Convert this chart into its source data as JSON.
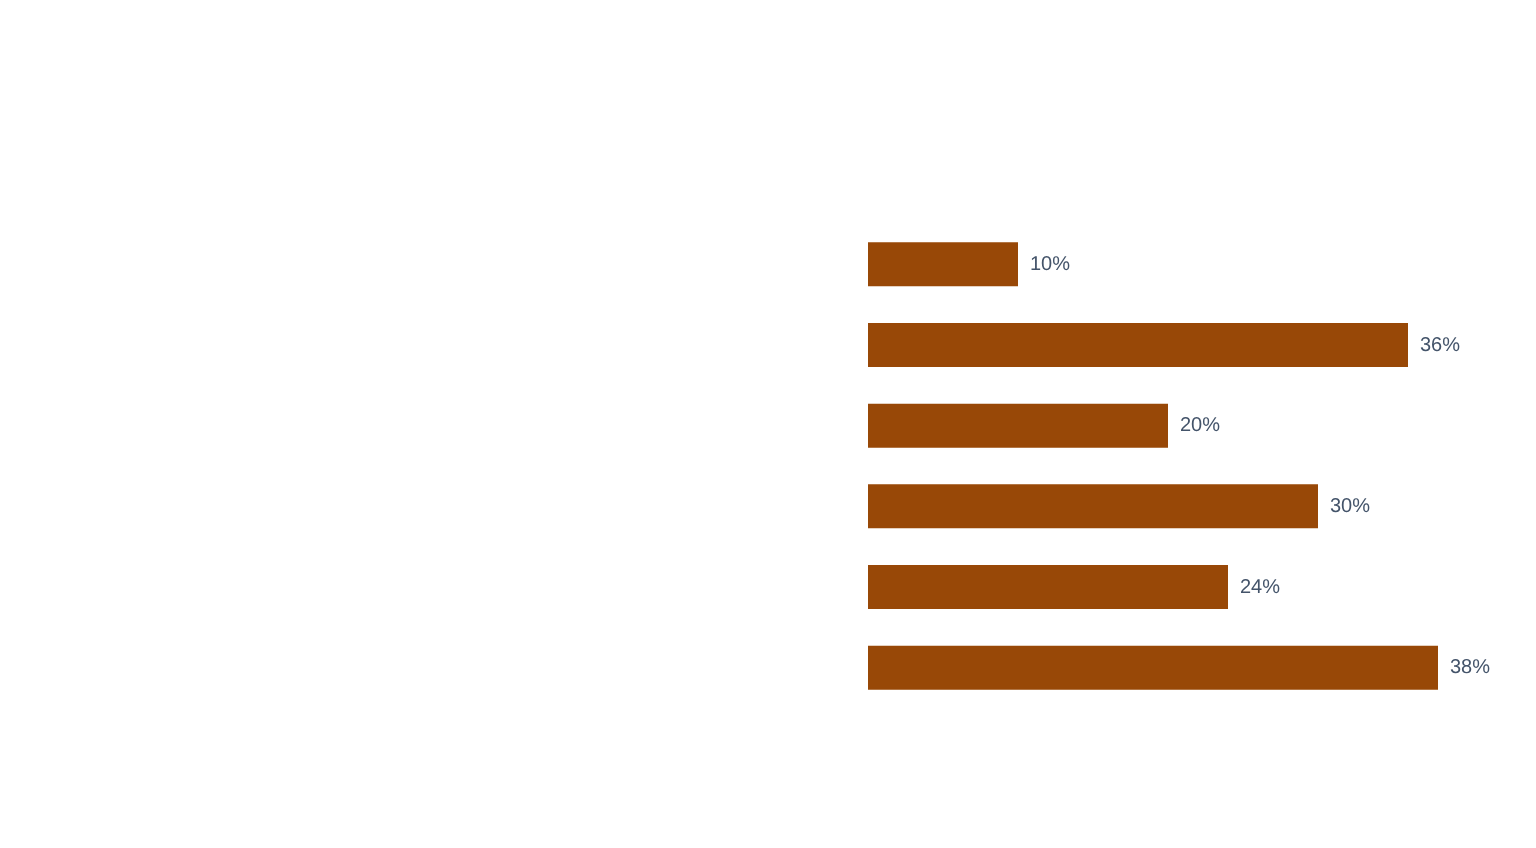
{
  "chart_data": {
    "type": "bar",
    "orientation": "horizontal",
    "categories": [
      null,
      null,
      null,
      null,
      null,
      null
    ],
    "values": [
      10,
      36,
      20,
      30,
      24,
      38
    ],
    "color": "#984807",
    "value_labels": [
      "10%",
      "36%",
      "20%",
      "30%",
      "24%",
      "38%"
    ],
    "tick_labels": false
  }
}
